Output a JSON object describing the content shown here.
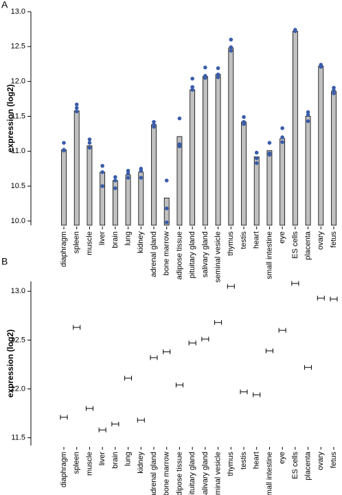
{
  "chart_data": [
    {
      "type": "bar",
      "panel": "A",
      "ylabel": "expression (log2)",
      "categories": [
        "diaphragm",
        "spleen",
        "muscle",
        "liver",
        "brain",
        "lung",
        "kidney",
        "adrenal gland",
        "bone marrow",
        "adipose tissue",
        "pituitary gland",
        "salivary gland",
        "seminal vesicle",
        "thymus",
        "testis",
        "heart",
        "small intestine",
        "eye",
        "ES cells",
        "placenta",
        "ovary",
        "fetus"
      ],
      "values": [
        11.02,
        11.58,
        11.08,
        10.7,
        10.58,
        10.66,
        10.7,
        11.38,
        10.33,
        11.21,
        11.88,
        12.07,
        12.1,
        12.48,
        11.42,
        10.92,
        11.01,
        11.18,
        12.72,
        11.5,
        12.22,
        11.86
      ],
      "points": [
        [
          11.12,
          11.02,
          11.01
        ],
        [
          11.67,
          11.62,
          11.57
        ],
        [
          11.17,
          11.12,
          11.05
        ],
        [
          10.79,
          10.7,
          10.5
        ],
        [
          10.63,
          10.58,
          10.47
        ],
        [
          10.72,
          10.68,
          10.62
        ],
        [
          10.75,
          10.72,
          10.62
        ],
        [
          11.42,
          11.38,
          11.35
        ],
        [
          10.58,
          10.18,
          9.98
        ],
        [
          11.47,
          11.1,
          11.07
        ],
        [
          12.04,
          11.92,
          11.88
        ],
        [
          12.2,
          12.08,
          12.05
        ],
        [
          12.19,
          12.1,
          12.06
        ],
        [
          12.6,
          12.49,
          12.44
        ],
        [
          11.49,
          11.42,
          11.39
        ],
        [
          10.98,
          10.9,
          10.83
        ],
        [
          11.12,
          10.97,
          10.95
        ],
        [
          11.33,
          11.2,
          11.13
        ],
        [
          12.74,
          12.73,
          12.72
        ],
        [
          11.56,
          11.52,
          11.43
        ],
        [
          12.24,
          12.22,
          12.21
        ],
        [
          11.91,
          11.87,
          11.83
        ]
      ],
      "color": "#c0c0c0",
      "point_color": "#3a5ca8",
      "ylim": [
        9.94,
        13.0
      ],
      "yticks": [
        {
          "value": 10.0,
          "label": "10.0"
        },
        10.5,
        {
          "value": 11.0,
          "label": "11.0"
        },
        11.5,
        {
          "value": 12.0,
          "label": "12.0"
        },
        12.5,
        {
          "value": 13.0,
          "label": "13.0"
        }
      ]
    },
    {
      "type": "errorbar",
      "panel": "B",
      "ylabel": "expression (log2)",
      "categories": [
        "diaphragm",
        "spleen",
        "muscle",
        "liver",
        "brain",
        "lung",
        "kidney",
        "adrenal gland",
        "bone marrow",
        "adipose tissue",
        "pituitary gland",
        "salivary gland",
        "seminal vesicle",
        "thymus",
        "testis",
        "heart",
        "small intestine",
        "eye",
        "ES cells",
        "placenta",
        "ovary",
        "fetus"
      ],
      "values": [
        11.71,
        12.63,
        11.8,
        11.58,
        11.64,
        12.11,
        11.68,
        12.32,
        12.38,
        12.04,
        12.47,
        12.51,
        12.68,
        13.05,
        11.97,
        11.94,
        12.39,
        12.6,
        13.08,
        12.22,
        12.93,
        12.92
      ],
      "errors": [
        0.01,
        0.01,
        0.01,
        0.01,
        0.01,
        0.01,
        0.01,
        0.01,
        0.01,
        0.01,
        0.01,
        0.01,
        0.01,
        0.01,
        0.01,
        0.01,
        0.01,
        0.01,
        0.01,
        0.01,
        0.01,
        0.01
      ],
      "color": "#000000",
      "ylim": [
        11.42,
        13.1
      ],
      "yticks": [
        11.5,
        {
          "value": 12.0,
          "label": "12.0"
        },
        12.5,
        {
          "value": 13.0,
          "label": "13.0"
        }
      ]
    }
  ]
}
